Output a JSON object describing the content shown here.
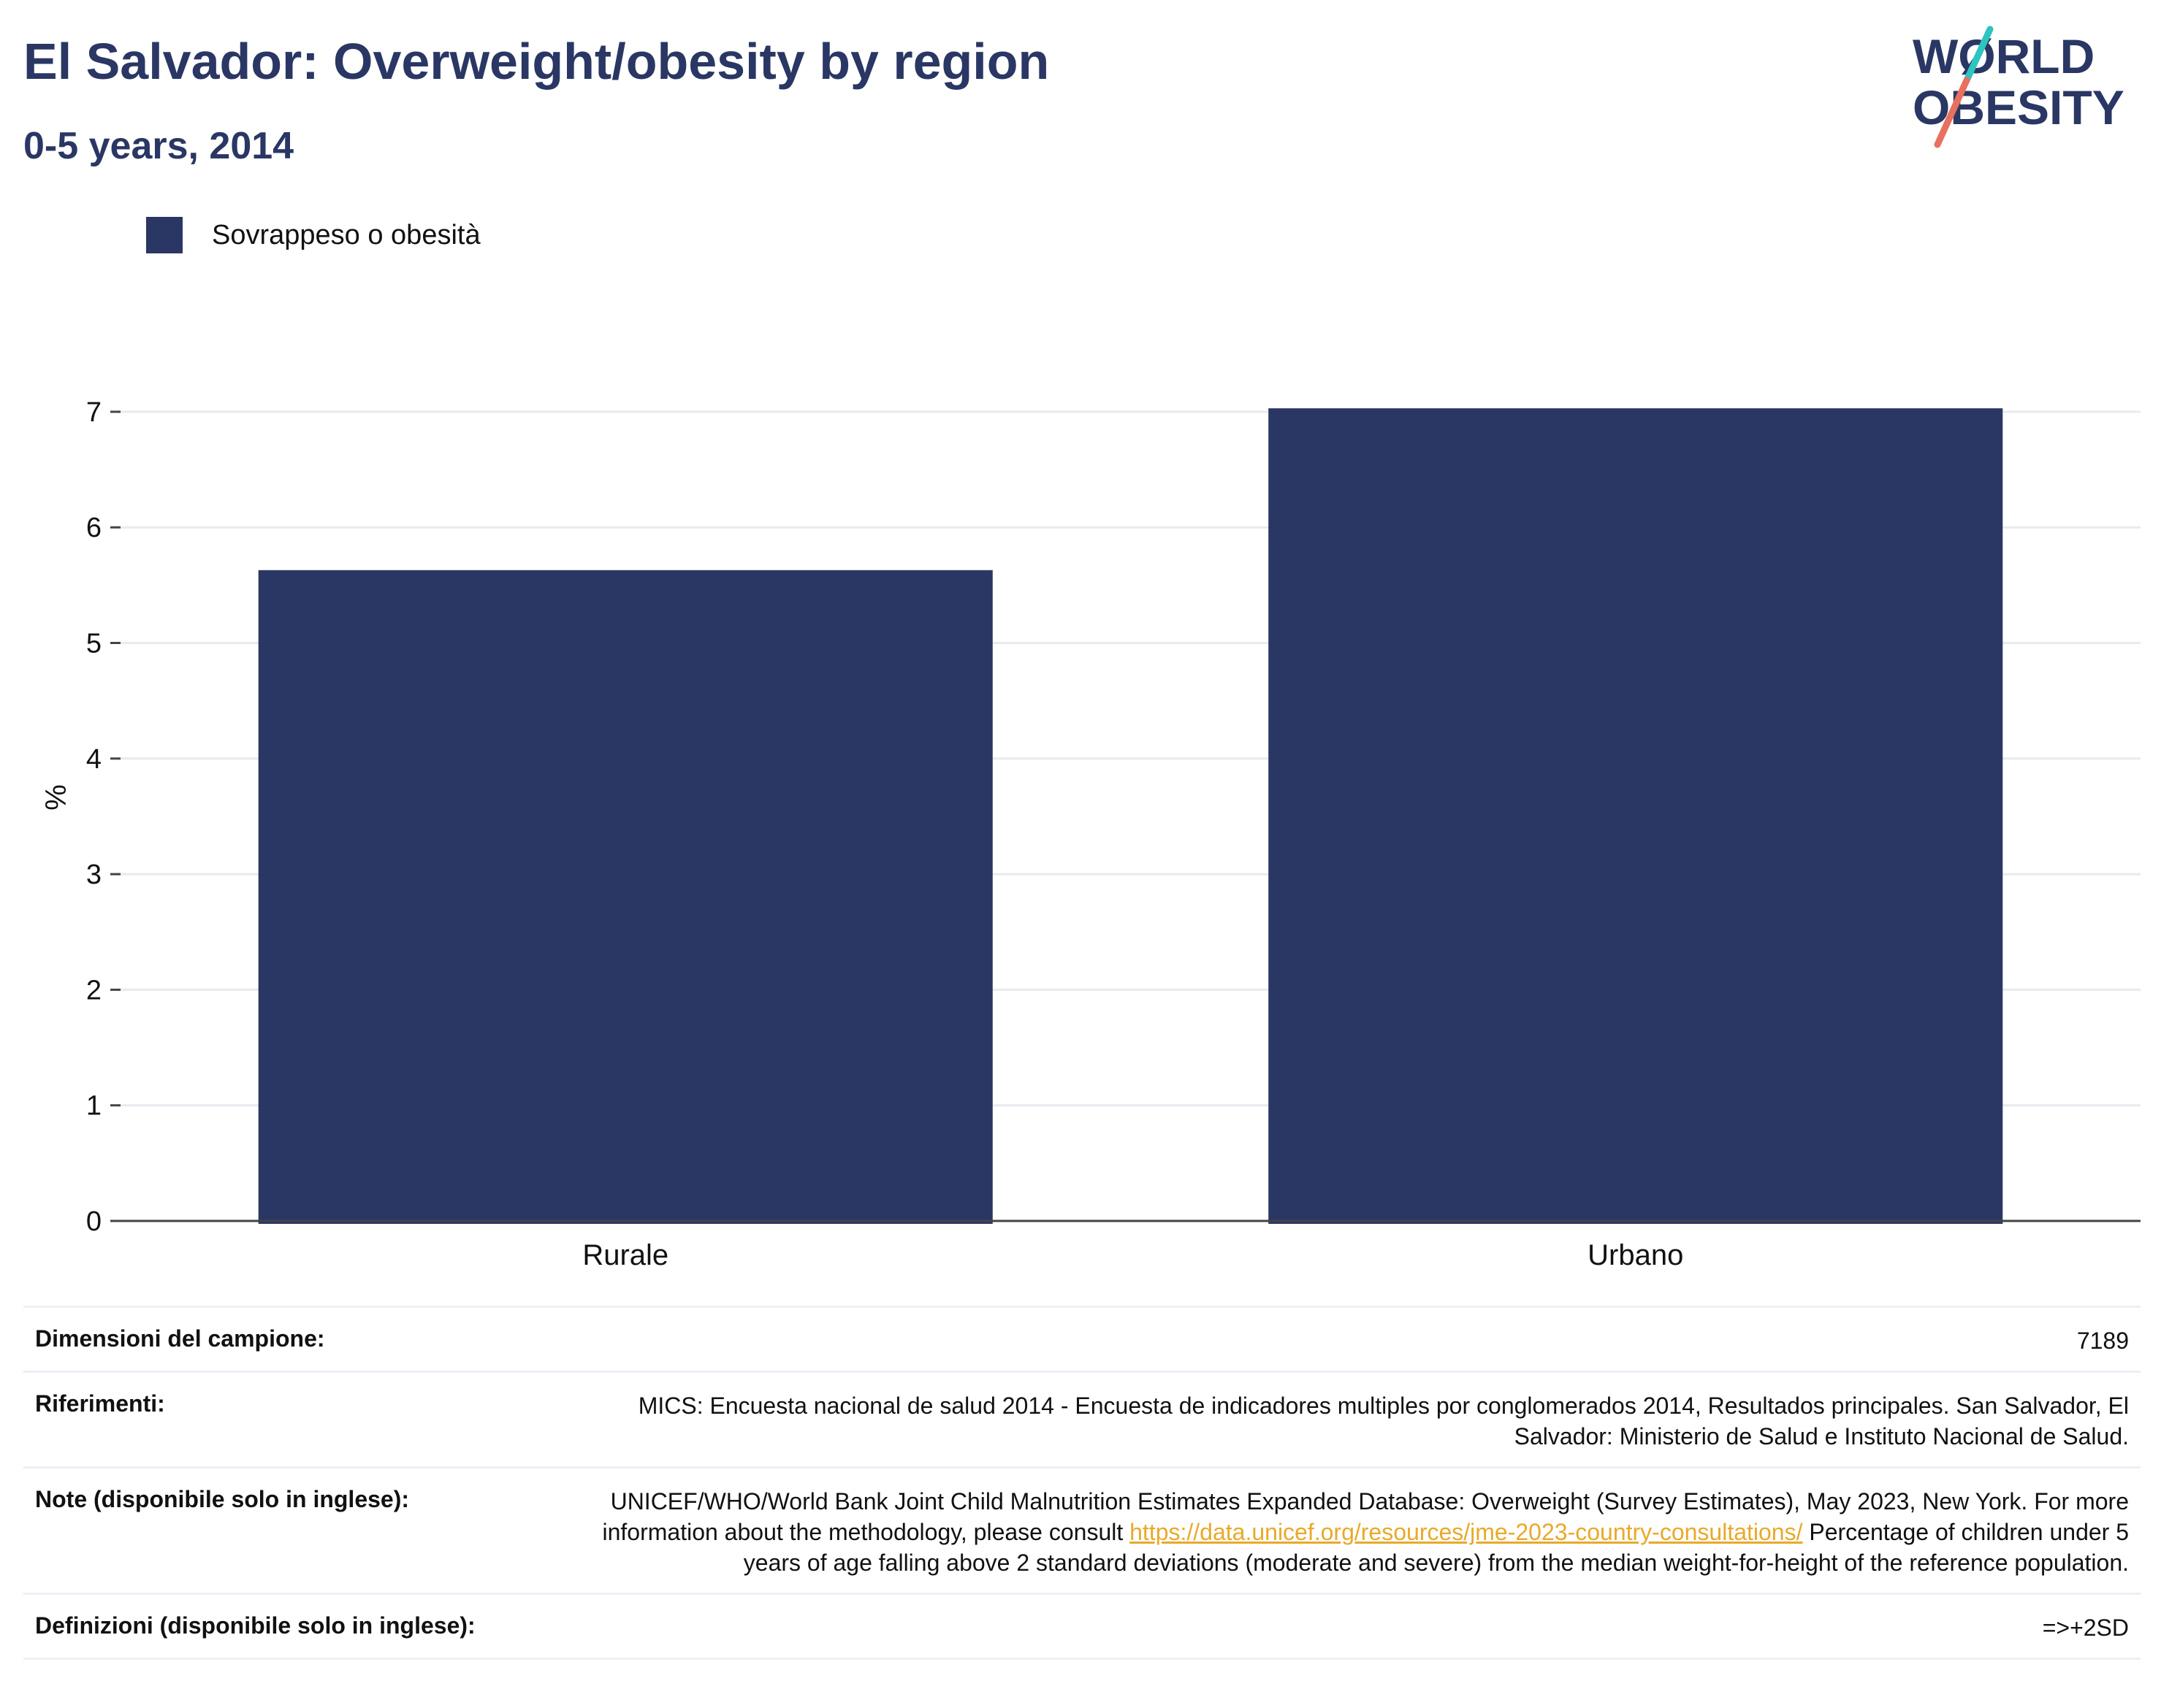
{
  "header": {
    "title": "El Salvador: Overweight/obesity by region",
    "subtitle": "0-5 years, 2014"
  },
  "logo": {
    "line1": "WØRLD",
    "line2": "OBESITY",
    "text_color": "#2a3764",
    "slash_teal": "#2ec4c0",
    "slash_red": "#e8705f"
  },
  "legend": {
    "label": "Sovrappeso o obesità",
    "color": "#2a3764"
  },
  "chart_data": {
    "type": "bar",
    "categories": [
      "Rurale",
      "Urbano"
    ],
    "series": [
      {
        "name": "Sovrappeso o obesità",
        "values": [
          5.63,
          7.03
        ],
        "color": "#2a3764"
      }
    ],
    "ylabel": "%",
    "xlabel": "",
    "ylim": [
      0,
      7.5
    ],
    "yticks": [
      0,
      1,
      2,
      3,
      4,
      5,
      6,
      7
    ],
    "grid": true
  },
  "info": {
    "sample": {
      "label": "Dimensioni del campione:",
      "value": "7189"
    },
    "references": {
      "label": "Riferimenti:",
      "value": "MICS: Encuesta nacional de salud 2014 - Encuesta de indicadores multiples por conglomerados 2014, Resultados principales. San Salvador, El Salvador: Ministerio de Salud e Instituto Nacional de Salud."
    },
    "notes": {
      "label": "Note (disponibile solo in inglese):",
      "value_before": "UNICEF/WHO/World Bank Joint Child Malnutrition Estimates Expanded Database: Overweight (Survey Estimates), May 2023, New York. For more information about the methodology, please consult ",
      "link": "https://data.unicef.org/resources/jme-2023-country-consultations/",
      "value_after": " Percentage of children under 5 years of age falling above 2 standard deviations (moderate and severe) from the median weight-for-height of the reference population."
    },
    "definitions": {
      "label": "Definizioni (disponibile solo in inglese):",
      "value": "=>+2SD"
    }
  }
}
